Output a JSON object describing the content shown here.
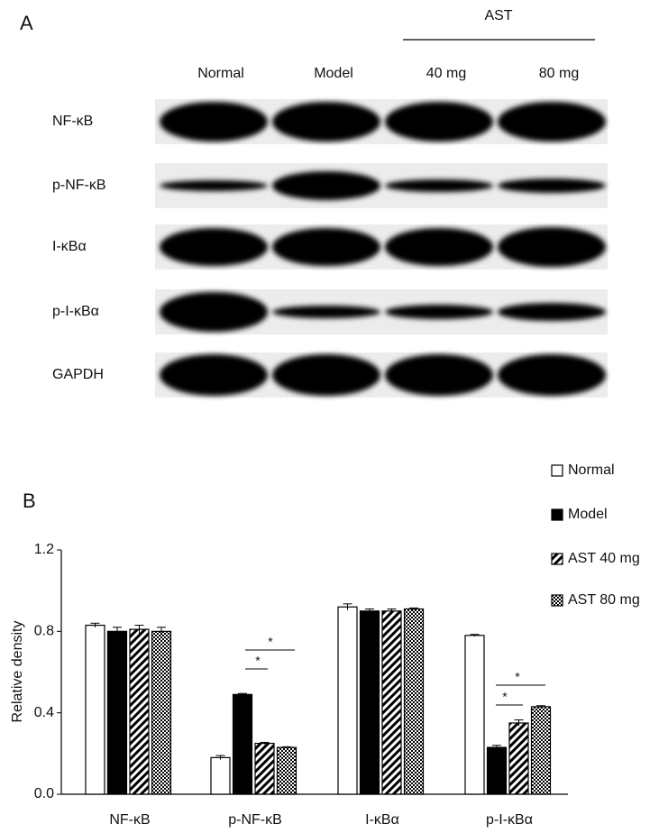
{
  "panel_a": {
    "label": "A",
    "group_label": "AST",
    "lanes": [
      "Normal",
      "Model",
      "40 mg",
      "80 mg"
    ],
    "rows": [
      "NF-κB",
      "p-NF-κB",
      "I-κBα",
      "p-I-κBα",
      "GAPDH"
    ]
  },
  "chart_data": {
    "type": "bar",
    "panel_label": "B",
    "y_label": "Relative density",
    "categories": [
      "NF-κB",
      "p-NF-κB",
      "I-κBα",
      "p-I-κBα"
    ],
    "series": [
      {
        "name": "Normal",
        "color": "#ffffff",
        "pattern": "solid",
        "values": [
          0.83,
          0.18,
          0.92,
          0.78
        ],
        "errors": [
          0.01,
          0.01,
          0.015,
          0.005
        ]
      },
      {
        "name": "Model",
        "color": "#000000",
        "pattern": "solid",
        "values": [
          0.8,
          0.49,
          0.9,
          0.23
        ],
        "errors": [
          0.02,
          0.005,
          0.01,
          0.01
        ]
      },
      {
        "name": "AST 40 mg",
        "color": "#000000",
        "pattern": "hatch",
        "values": [
          0.81,
          0.25,
          0.9,
          0.35
        ],
        "errors": [
          0.02,
          0.005,
          0.01,
          0.015
        ]
      },
      {
        "name": "AST 80 mg",
        "color": "#000000",
        "pattern": "checker",
        "values": [
          0.8,
          0.23,
          0.91,
          0.43
        ],
        "errors": [
          0.02,
          0.003,
          0.005,
          0.005
        ]
      }
    ],
    "annotations": [
      "*",
      "*",
      "*",
      "*"
    ],
    "ylim": [
      0,
      1.2
    ],
    "yticks": [
      {
        "value": 0,
        "label": "0.0"
      },
      0.4,
      0.8,
      1.2
    ],
    "legend": "top-right"
  }
}
